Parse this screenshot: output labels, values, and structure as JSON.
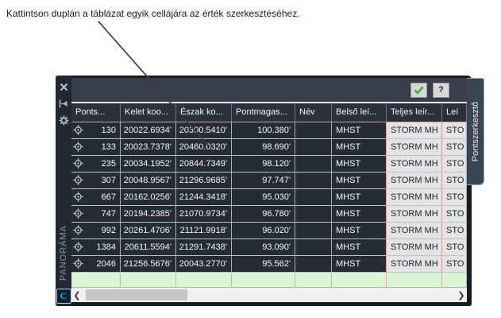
{
  "annotation": {
    "text": "Kattintson duplán a táblázat egyik cellájára az érték szerkesztéséhez."
  },
  "panel": {
    "side_label": "PANORÁMA",
    "tab_label": "Pontszerkesztő",
    "logo_letter": "C",
    "toolbar": {
      "apply_icon": "green-checkmark",
      "help_label": "?"
    },
    "table": {
      "columns": [
        {
          "key": "pont",
          "label": "Ponts..."
        },
        {
          "key": "kelet",
          "label": "Kelet koo..."
        },
        {
          "key": "eszak",
          "label": "Észak ko..."
        },
        {
          "key": "magas",
          "label": "Pontmagas..."
        },
        {
          "key": "nev",
          "label": "Név"
        },
        {
          "key": "belso",
          "label": "Belső leí..."
        },
        {
          "key": "teljes",
          "label": "Teljes leír..."
        },
        {
          "key": "lei",
          "label": "Leí"
        }
      ],
      "rows": [
        {
          "pont": "130",
          "kelet": "20022.6934'",
          "eszak": "20300.5410'",
          "magas": "100.380'",
          "nev": "",
          "belso": "MHST",
          "teljes": "STORM MH",
          "lei": "STO"
        },
        {
          "pont": "133",
          "kelet": "20023.7378'",
          "eszak": "20460.0320'",
          "magas": "98.690'",
          "nev": "",
          "belso": "MHST",
          "teljes": "STORM MH",
          "lei": "STO"
        },
        {
          "pont": "235",
          "kelet": "20034.1952'",
          "eszak": "20844.7349'",
          "magas": "98.120'",
          "nev": "",
          "belso": "MHST",
          "teljes": "STORM MH",
          "lei": "STO"
        },
        {
          "pont": "307",
          "kelet": "20048.9567'",
          "eszak": "21296.9685'",
          "magas": "97.747'",
          "nev": "",
          "belso": "MHST",
          "teljes": "STORM MH",
          "lei": "STO"
        },
        {
          "pont": "667",
          "kelet": "20162.0256'",
          "eszak": "21244.3418'",
          "magas": "95.030'",
          "nev": "",
          "belso": "MHST",
          "teljes": "STORM MH",
          "lei": "STO"
        },
        {
          "pont": "747",
          "kelet": "20194.2385'",
          "eszak": "21070.9734'",
          "magas": "96.780'",
          "nev": "",
          "belso": "MHST",
          "teljes": "STORM MH",
          "lei": "STO"
        },
        {
          "pont": "992",
          "kelet": "20261.4706'",
          "eszak": "21121.9918'",
          "magas": "96.020'",
          "nev": "",
          "belso": "MHST",
          "teljes": "STORM MH",
          "lei": "STO"
        },
        {
          "pont": "1384",
          "kelet": "20611.5594'",
          "eszak": "21291.7438'",
          "magas": "93.090'",
          "nev": "",
          "belso": "MHST",
          "teljes": "STORM MH",
          "lei": "STO"
        },
        {
          "pont": "2046",
          "kelet": "21256.5676'",
          "eszak": "20043.2770'",
          "magas": "95.562'",
          "nev": "",
          "belso": "MHST",
          "teljes": "STORM MH",
          "lei": "STO"
        }
      ]
    }
  },
  "colors": {
    "check_green": "#3fae3f",
    "grid_pink": "#d79b9b",
    "new_row_green": "#daf5d3",
    "tab_bg": "#3a4552",
    "row_bg": "#262b36"
  }
}
